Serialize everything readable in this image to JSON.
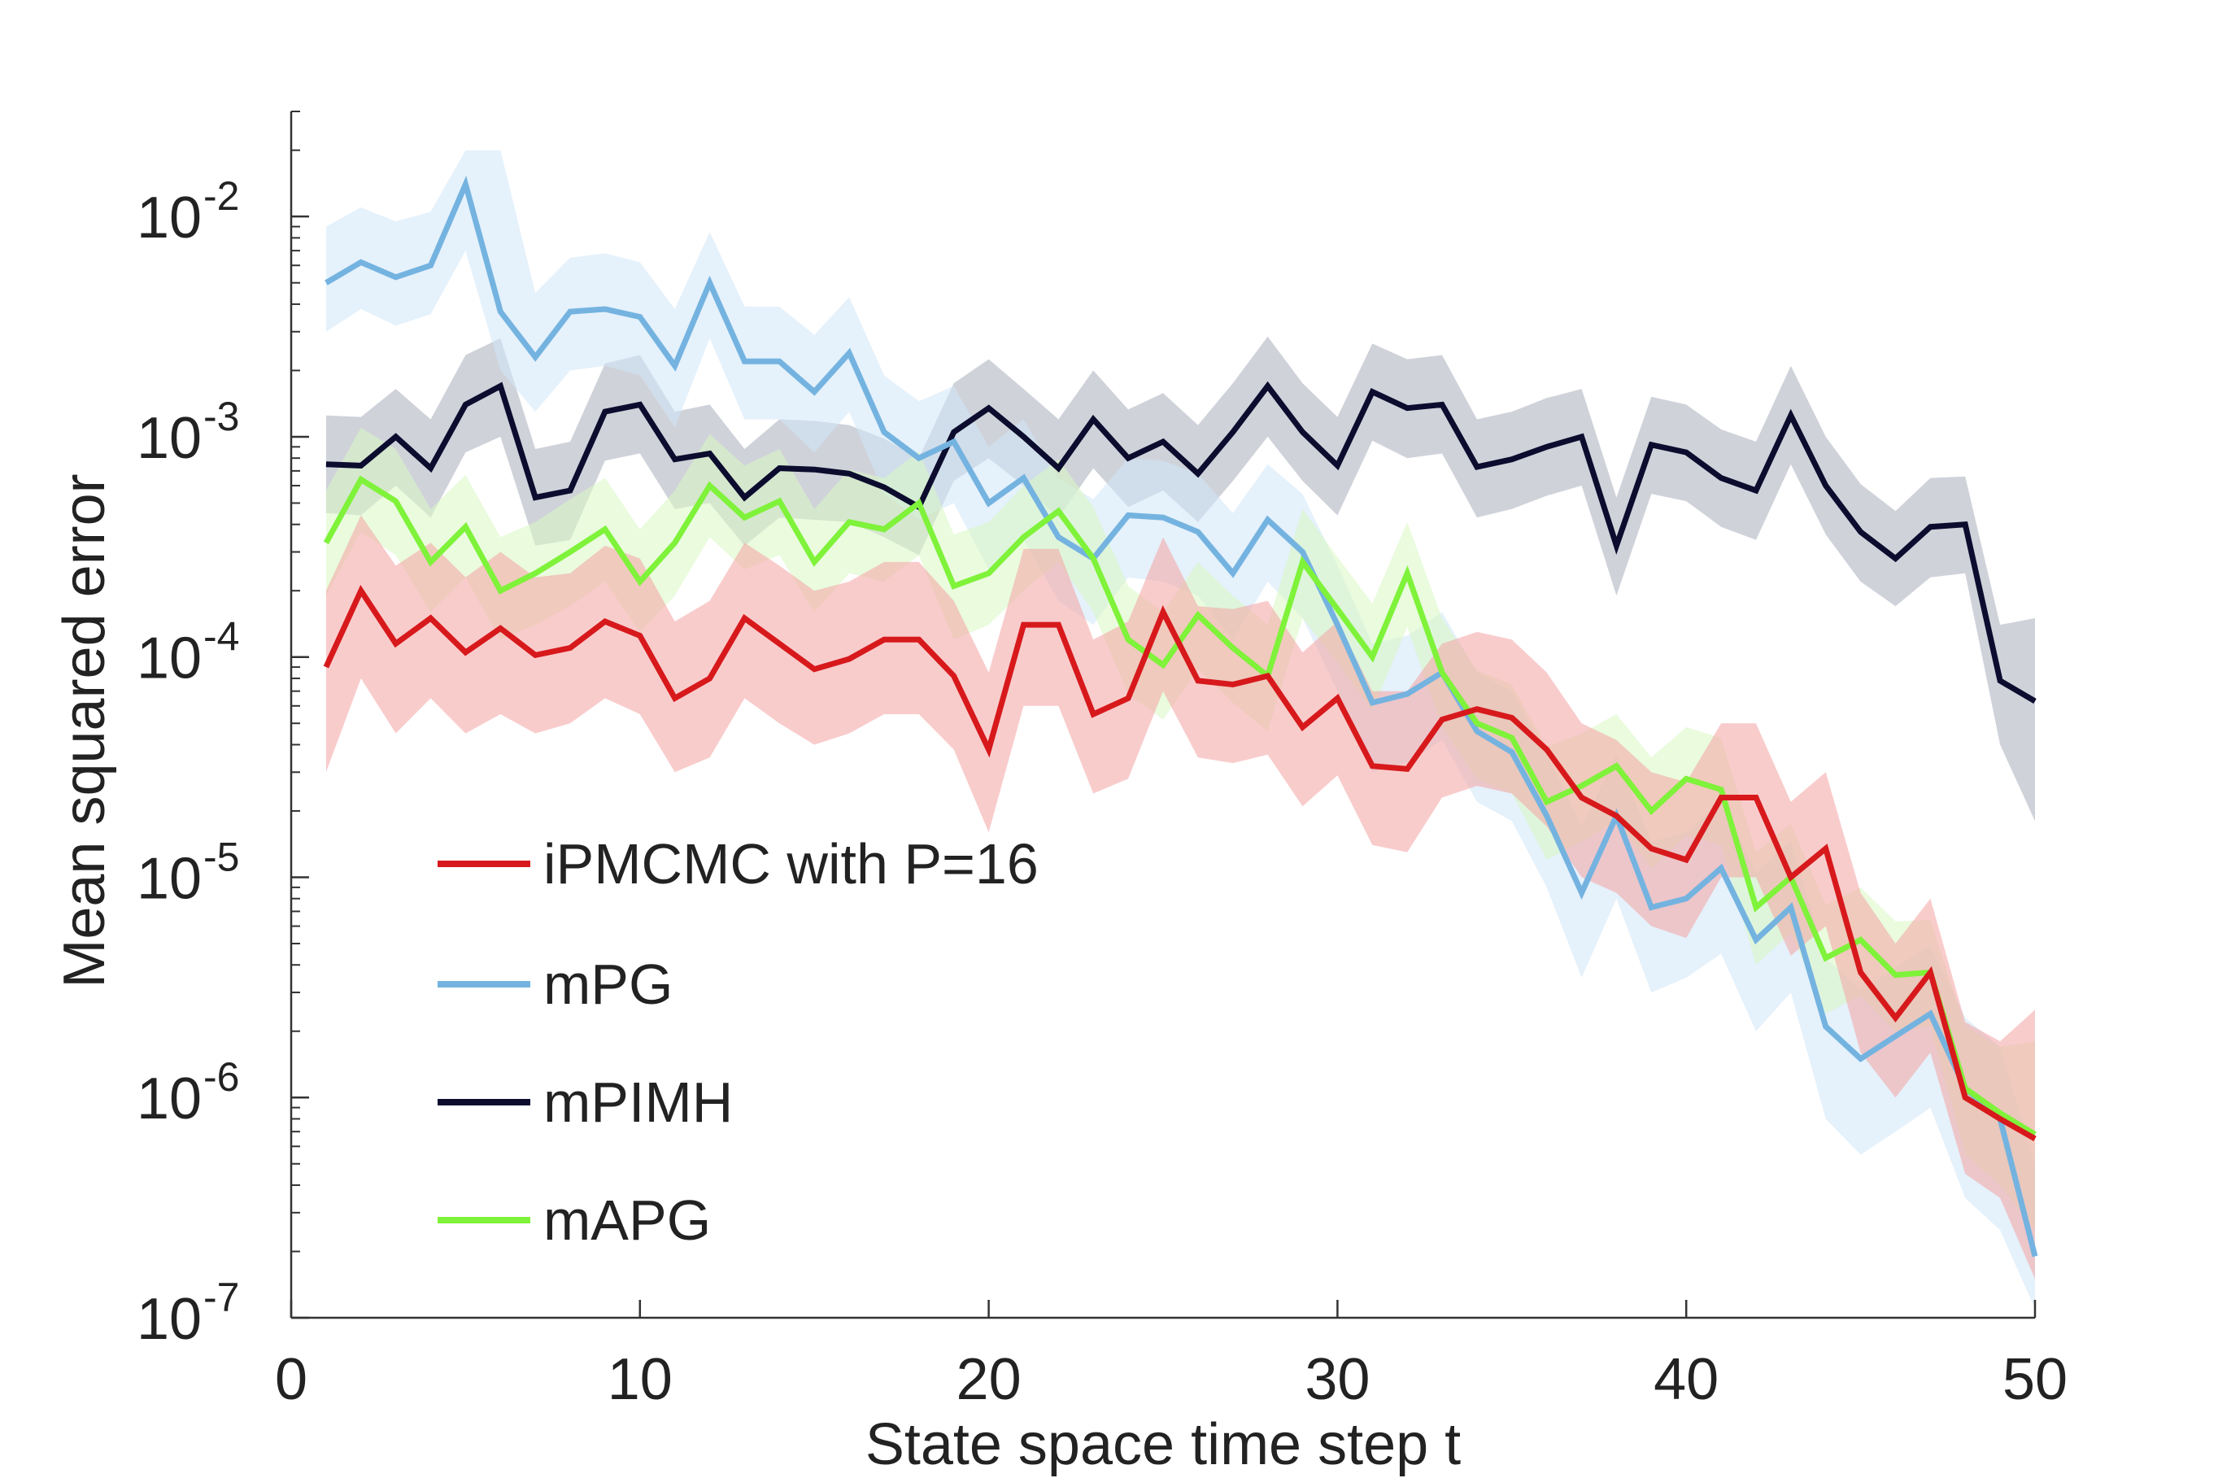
{
  "chart_data": {
    "type": "line",
    "title": "",
    "xlabel": "State space time step t",
    "ylabel": "Mean squared error",
    "xlim": [
      0,
      50
    ],
    "ylim": [
      1e-07,
      0.03
    ],
    "yscale": "log",
    "xticks": [
      "0",
      "10",
      "20",
      "30",
      "40",
      "50"
    ],
    "yticks": [
      {
        "base": "10",
        "exp": "-7",
        "value": 1e-07
      },
      {
        "base": "10",
        "exp": "-6",
        "value": 1e-06
      },
      {
        "base": "10",
        "exp": "-5",
        "value": 1e-05
      },
      {
        "base": "10",
        "exp": "-4",
        "value": 0.0001
      },
      {
        "base": "10",
        "exp": "-3",
        "value": 0.001
      },
      {
        "base": "10",
        "exp": "-2",
        "value": 0.01
      }
    ],
    "grid": false,
    "legend_position": "lower-left",
    "x": [
      1,
      2,
      3,
      4,
      5,
      6,
      7,
      8,
      9,
      10,
      11,
      12,
      13,
      14,
      15,
      16,
      17,
      18,
      19,
      20,
      21,
      22,
      23,
      24,
      25,
      26,
      27,
      28,
      29,
      30,
      31,
      32,
      33,
      34,
      35,
      36,
      37,
      38,
      39,
      40,
      41,
      42,
      43,
      44,
      45,
      46,
      47,
      48,
      49,
      50
    ],
    "series": [
      {
        "name": "iPMCMC with P=16",
        "color": "#d7191c",
        "band_color": "#f4a3a3",
        "values": [
          9e-05,
          0.0002,
          0.000115,
          0.00015,
          0.000105,
          0.000135,
          0.000102,
          0.00011,
          0.000145,
          0.000125,
          6.5e-05,
          8e-05,
          0.00015,
          0.000115,
          8.8e-05,
          9.8e-05,
          0.00012,
          0.00012,
          8.2e-05,
          3.8e-05,
          0.00014,
          0.00014,
          5.5e-05,
          6.5e-05,
          0.00016,
          7.8e-05,
          7.5e-05,
          8.2e-05,
          4.8e-05,
          6.5e-05,
          3.2e-05,
          3.1e-05,
          5.2e-05,
          5.8e-05,
          5.3e-05,
          3.8e-05,
          2.3e-05,
          1.9e-05,
          1.35e-05,
          1.2e-05,
          2.3e-05,
          2.3e-05,
          1e-05,
          1.35e-05,
          3.7e-06,
          2.3e-06,
          3.7e-06,
          1e-06,
          8e-07,
          6.5e-07
        ],
        "lower": [
          3e-05,
          8e-05,
          4.5e-05,
          6.5e-05,
          4.5e-05,
          5.5e-05,
          4.5e-05,
          5e-05,
          6.5e-05,
          5.5e-05,
          3e-05,
          3.5e-05,
          6.5e-05,
          5e-05,
          4e-05,
          4.5e-05,
          5.5e-05,
          5.5e-05,
          3.8e-05,
          1.6e-05,
          6e-05,
          6e-05,
          2.4e-05,
          2.8e-05,
          7e-05,
          3.5e-05,
          3.3e-05,
          3.6e-05,
          2.1e-05,
          2.9e-05,
          1.4e-05,
          1.3e-05,
          2.3e-05,
          2.6e-05,
          2.4e-05,
          1.7e-05,
          1e-05,
          8.5e-06,
          6e-06,
          5.3e-06,
          1e-05,
          1e-05,
          4.4e-06,
          6e-06,
          1.6e-06,
          1e-06,
          1.6e-06,
          4.5e-07,
          3.5e-07,
          1.5e-07
        ],
        "upper": [
          0.0002,
          0.00044,
          0.00026,
          0.00033,
          0.00023,
          0.0003,
          0.00023,
          0.00024,
          0.00032,
          0.00028,
          0.000145,
          0.00018,
          0.00033,
          0.00026,
          0.0002,
          0.00022,
          0.00027,
          0.00027,
          0.00018,
          8.5e-05,
          0.00031,
          0.00031,
          0.00012,
          0.000145,
          0.00035,
          0.00017,
          0.000165,
          0.00018,
          0.000105,
          0.000145,
          7e-05,
          7e-05,
          0.000115,
          0.00013,
          0.00012,
          8.5e-05,
          5e-05,
          4.2e-05,
          3e-05,
          2.7e-05,
          5e-05,
          5e-05,
          2.2e-05,
          3e-05,
          8.5e-06,
          5e-06,
          8e-06,
          2.2e-06,
          1.8e-06,
          2.5e-06
        ]
      },
      {
        "name": "mPG",
        "color": "#74b3e0",
        "band_color": "#cfe6f8",
        "values": [
          0.005,
          0.0062,
          0.0053,
          0.006,
          0.014,
          0.0037,
          0.0023,
          0.0037,
          0.0038,
          0.0035,
          0.0021,
          0.005,
          0.0022,
          0.0022,
          0.0016,
          0.0024,
          0.00105,
          0.0008,
          0.00095,
          0.0005,
          0.00065,
          0.00035,
          0.00028,
          0.00044,
          0.00043,
          0.00037,
          0.00024,
          0.00042,
          0.0003,
          0.00014,
          6.2e-05,
          6.8e-05,
          8.5e-05,
          4.6e-05,
          3.7e-05,
          1.9e-05,
          8.5e-06,
          1.9e-05,
          7.3e-06,
          8e-06,
          1.1e-05,
          5.2e-06,
          7.3e-06,
          2.1e-06,
          1.5e-06,
          1.9e-06,
          2.4e-06,
          1.1e-06,
          8e-07,
          1.9e-07
        ],
        "lower": [
          0.003,
          0.0038,
          0.0032,
          0.0036,
          0.007,
          0.002,
          0.0013,
          0.002,
          0.0021,
          0.0019,
          0.0011,
          0.0028,
          0.0012,
          0.0012,
          0.00085,
          0.0013,
          0.00055,
          0.00042,
          0.0005,
          0.00025,
          0.00034,
          0.00018,
          0.00014,
          0.00023,
          0.00022,
          0.00019,
          0.00012,
          0.00022,
          0.00015,
          7e-05,
          3e-05,
          3.3e-05,
          4.2e-05,
          2.2e-05,
          1.8e-05,
          9e-06,
          3.5e-06,
          8e-06,
          3e-06,
          3.5e-06,
          4.5e-06,
          2e-06,
          3e-06,
          8e-07,
          5.5e-07,
          7e-07,
          9e-07,
          3.5e-07,
          2.5e-07,
          1.1e-07
        ],
        "upper": [
          0.009,
          0.011,
          0.0095,
          0.0105,
          0.02,
          0.02,
          0.0045,
          0.0065,
          0.0068,
          0.0062,
          0.0038,
          0.0085,
          0.0039,
          0.0039,
          0.0029,
          0.0043,
          0.0019,
          0.00145,
          0.0017,
          0.0009,
          0.0012,
          0.00065,
          0.00052,
          0.0008,
          0.00078,
          0.00068,
          0.00045,
          0.00075,
          0.00055,
          0.00026,
          0.000115,
          0.000125,
          0.00016,
          8.5e-05,
          7e-05,
          3.6e-05,
          1.7e-05,
          3.6e-05,
          1.45e-05,
          1.6e-05,
          2.2e-05,
          1.05e-05,
          1.45e-05,
          4.3e-06,
          3.1e-06,
          3.9e-06,
          4.9e-06,
          2.3e-06,
          1.7e-06,
          5e-07
        ]
      },
      {
        "name": "mPIMH",
        "color": "#0b0c2e",
        "band_color": "#a9adbb",
        "values": [
          0.00075,
          0.00074,
          0.001,
          0.00072,
          0.0014,
          0.0017,
          0.00053,
          0.00057,
          0.0013,
          0.0014,
          0.00079,
          0.00084,
          0.00053,
          0.00072,
          0.00071,
          0.00068,
          0.00059,
          0.00048,
          0.00105,
          0.00135,
          0.001,
          0.00072,
          0.0012,
          0.0008,
          0.00095,
          0.00068,
          0.00105,
          0.0017,
          0.00105,
          0.00074,
          0.0016,
          0.00135,
          0.0014,
          0.00073,
          0.00079,
          0.0009,
          0.001,
          0.00032,
          0.00092,
          0.00085,
          0.00065,
          0.00057,
          0.00125,
          0.0006,
          0.00037,
          0.00028,
          0.00039,
          0.0004,
          7.8e-05,
          6.3e-05
        ],
        "lower": [
          0.00045,
          0.00044,
          0.0006,
          0.00043,
          0.00085,
          0.001,
          0.00032,
          0.00034,
          0.00078,
          0.00084,
          0.00047,
          0.0005,
          0.00032,
          0.00043,
          0.00042,
          0.00041,
          0.00035,
          0.00029,
          0.00063,
          0.0008,
          0.0006,
          0.00043,
          0.00072,
          0.00048,
          0.00057,
          0.00041,
          0.00063,
          0.001,
          0.00063,
          0.00044,
          0.00096,
          0.0008,
          0.00084,
          0.00043,
          0.00047,
          0.00054,
          0.0006,
          0.00019,
          0.00055,
          0.00051,
          0.00039,
          0.00034,
          0.00075,
          0.00036,
          0.00022,
          0.00017,
          0.00023,
          0.00024,
          4e-05,
          1.8e-05
        ],
        "upper": [
          0.00125,
          0.00123,
          0.00165,
          0.0012,
          0.00235,
          0.0028,
          0.00088,
          0.00095,
          0.00215,
          0.00235,
          0.0013,
          0.0014,
          0.00088,
          0.0012,
          0.00118,
          0.00113,
          0.00098,
          0.0008,
          0.00175,
          0.00225,
          0.00165,
          0.0012,
          0.002,
          0.00133,
          0.00158,
          0.00113,
          0.00175,
          0.00285,
          0.00175,
          0.00123,
          0.00265,
          0.00225,
          0.00235,
          0.0012,
          0.0013,
          0.0015,
          0.00165,
          0.00053,
          0.00152,
          0.0014,
          0.00108,
          0.00095,
          0.0021,
          0.001,
          0.00061,
          0.00046,
          0.00065,
          0.00066,
          0.00014,
          0.00015
        ]
      },
      {
        "name": "mAPG",
        "color": "#7ff23a",
        "band_color": "#d8f7c2",
        "values": [
          0.00033,
          0.00064,
          0.00051,
          0.00027,
          0.00039,
          0.0002,
          0.00024,
          0.0003,
          0.00038,
          0.00022,
          0.00033,
          0.0006,
          0.00043,
          0.00051,
          0.00027,
          0.00041,
          0.00038,
          0.0005,
          0.00021,
          0.00024,
          0.00035,
          0.00046,
          0.00028,
          0.00012,
          9.2e-05,
          0.000155,
          0.00011,
          8.2e-05,
          0.00027,
          0.000165,
          0.0001,
          0.00024,
          8.5e-05,
          5e-05,
          4.3e-05,
          2.2e-05,
          2.6e-05,
          3.2e-05,
          2e-05,
          2.8e-05,
          2.5e-05,
          7.3e-06,
          1e-05,
          4.3e-06,
          5.2e-06,
          3.6e-06,
          3.7e-06,
          1.1e-06,
          8.5e-07,
          6.8e-07
        ],
        "lower": [
          0.00019,
          0.00037,
          0.00029,
          0.00016,
          0.00023,
          0.00012,
          0.00014,
          0.00017,
          0.00022,
          0.00013,
          0.00019,
          0.00035,
          0.00025,
          0.00029,
          0.00016,
          0.00024,
          0.00022,
          0.00029,
          0.00012,
          0.00014,
          0.0002,
          0.00027,
          0.00016,
          6.8e-05,
          5.2e-05,
          8.8e-05,
          6.2e-05,
          4.6e-05,
          0.00015,
          9.4e-05,
          5.7e-05,
          0.000137,
          4.8e-05,
          2.8e-05,
          2.4e-05,
          1.2e-05,
          1.45e-05,
          1.8e-05,
          1.1e-05,
          1.55e-05,
          1.4e-05,
          4e-06,
          5.6e-06,
          2.4e-06,
          2.9e-06,
          2e-06,
          2.1e-06,
          5.5e-07,
          4e-07,
          2.5e-07
        ],
        "upper": [
          0.00057,
          0.0011,
          0.00088,
          0.00047,
          0.00067,
          0.00035,
          0.00041,
          0.00052,
          0.00065,
          0.00038,
          0.00057,
          0.00103,
          0.00074,
          0.00088,
          0.00047,
          0.00071,
          0.00065,
          0.00086,
          0.00036,
          0.00041,
          0.0006,
          0.00079,
          0.00048,
          0.00021,
          0.00016,
          0.00027,
          0.00019,
          0.00014,
          0.00047,
          0.000285,
          0.000175,
          0.00041,
          0.00015,
          8.7e-05,
          7.5e-05,
          3.9e-05,
          4.5e-05,
          5.5e-05,
          3.5e-05,
          4.8e-05,
          4.3e-05,
          1.3e-05,
          1.75e-05,
          7.5e-06,
          9e-06,
          6.3e-06,
          6.4e-06,
          2.1e-06,
          1.7e-06,
          1.8e-06
        ]
      }
    ]
  }
}
